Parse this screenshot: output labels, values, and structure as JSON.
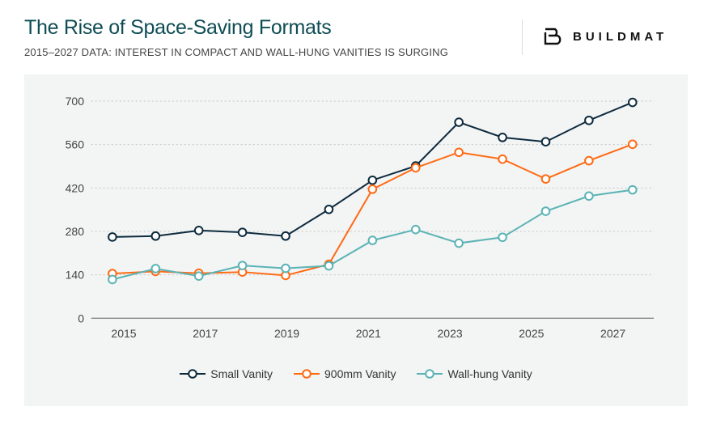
{
  "header": {
    "title": "The Rise of Space-Saving Formats",
    "subtitle": "2015–2027 DATA: INTEREST IN COMPACT AND WALL-HUNG VANITIES IS SURGING",
    "brand": "BUILDMAT",
    "brand_icon": "b-monogram-logo"
  },
  "chart_data": {
    "type": "line",
    "title": "The Rise of Space-Saving Formats",
    "subtitle": "2015–2027 DATA: INTEREST IN COMPACT AND WALL-HUNG VANITIES IS SURGING",
    "xlabel": "",
    "ylabel": "",
    "x": [
      2014.72,
      2015.78,
      2016.84,
      2017.91,
      2018.97,
      2020.03,
      2021.1,
      2022.16,
      2023.22,
      2024.29,
      2025.35,
      2026.41,
      2027.48
    ],
    "xlim": [
      2014.2,
      2028.0
    ],
    "xticks": [
      "2015",
      "2017",
      "2019",
      "2021",
      "2023",
      "2025",
      "2027"
    ],
    "ylim": [
      0,
      700
    ],
    "yticks": [
      "0",
      "140",
      "280",
      "420",
      "560",
      "700"
    ],
    "grid": "horizontal dotted",
    "legend": "bottom-center",
    "series": [
      {
        "name": "Small Vanity",
        "color": "#0d2b3e",
        "values": [
          262,
          265,
          283,
          277,
          265,
          351,
          445,
          491,
          632,
          583,
          569,
          638,
          696
        ]
      },
      {
        "name": "900mm Vanity",
        "color": "#ff6a13",
        "values": [
          144,
          151,
          145,
          149,
          138,
          174,
          416,
          485,
          535,
          513,
          449,
          508,
          561
        ]
      },
      {
        "name": "Wall-hung Vanity",
        "color": "#5bb3b5",
        "values": [
          125,
          160,
          136,
          170,
          161,
          169,
          251,
          286,
          242,
          261,
          345,
          394,
          414
        ]
      }
    ]
  }
}
